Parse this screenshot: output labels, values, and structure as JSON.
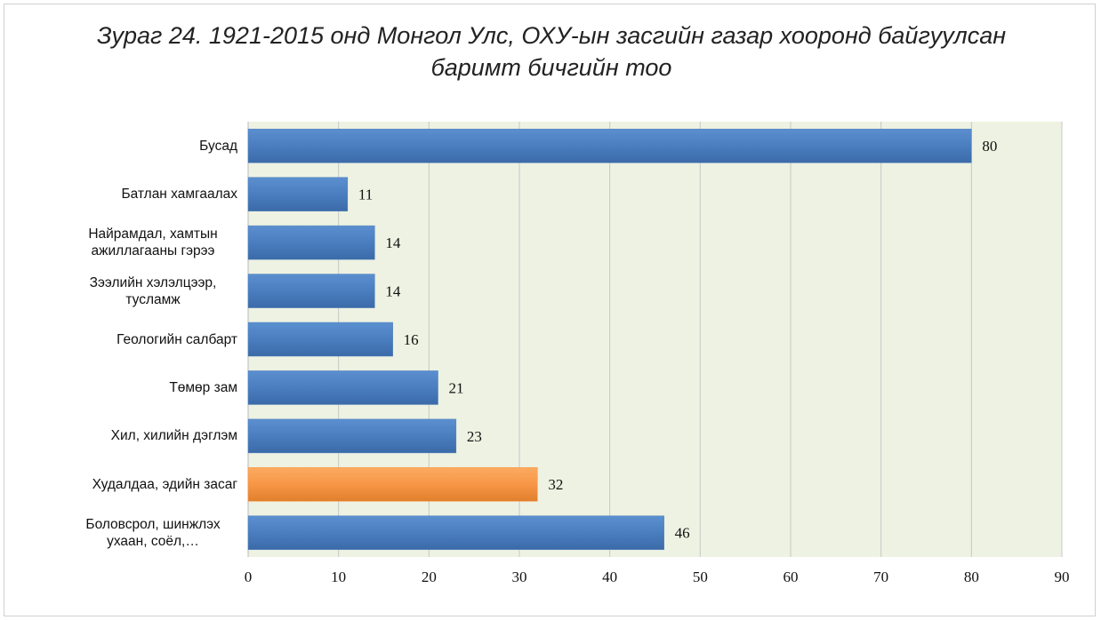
{
  "chart_data": {
    "type": "barh",
    "title": "Зураг 24. 1921-2015 онд Монгол Улс, ОХУ-ын засгийн газар хооронд байгуулсан баримт бичгийн тоо",
    "categories": [
      "Бусад",
      "Батлан хамгаалах",
      "Найрамдал, хамтын ажиллагааны гэрээ",
      "Зээлийн хэлэлцээр, тусламж",
      "Геологийн салбарт",
      "Төмөр зам",
      "Хил, хилийн дэглэм",
      "Худалдаа, эдийн засаг",
      "Боловсрол, шинжлэх ухаан, соёл,…"
    ],
    "values": [
      80,
      11,
      14,
      14,
      16,
      21,
      23,
      32,
      46
    ],
    "colors": [
      "#4f81bd",
      "#4f81bd",
      "#4f81bd",
      "#4f81bd",
      "#4f81bd",
      "#4f81bd",
      "#4f81bd",
      "#f79646",
      "#4f81bd"
    ],
    "xlim": [
      0,
      90
    ],
    "xticks": [
      0,
      10,
      20,
      30,
      40,
      50,
      60,
      70,
      80,
      90
    ],
    "grid": true
  }
}
